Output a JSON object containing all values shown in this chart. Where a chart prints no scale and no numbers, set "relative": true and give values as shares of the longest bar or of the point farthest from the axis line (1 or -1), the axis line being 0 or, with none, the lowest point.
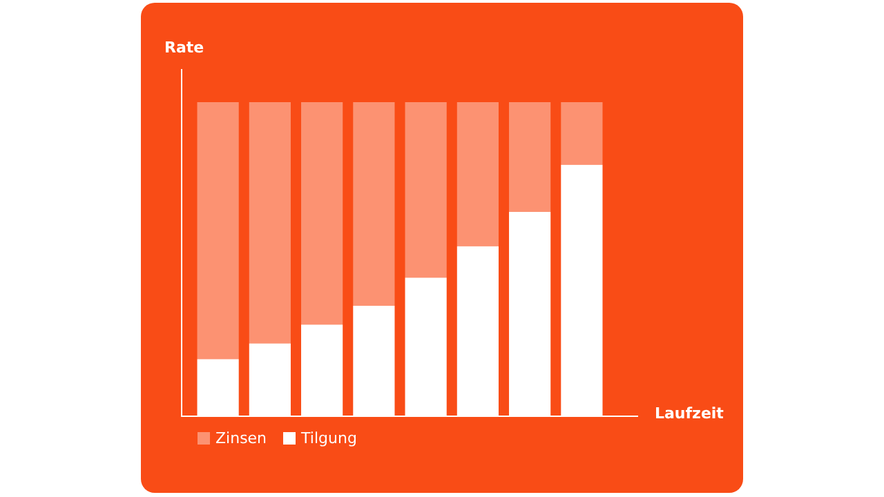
{
  "chart_data": {
    "type": "bar",
    "stacked": true,
    "relative": true,
    "xlabel": "Laufzeit",
    "ylabel": "Rate",
    "categories": [
      null,
      null,
      null,
      null,
      null,
      null,
      null,
      null
    ],
    "series": [
      {
        "name": "Tilgung",
        "color": "#ffffff",
        "values": [
          0.18,
          0.23,
          0.29,
          0.35,
          0.44,
          0.54,
          0.65,
          0.8
        ]
      },
      {
        "name": "Zinsen",
        "color": "#fc9272",
        "values": [
          0.82,
          0.77,
          0.71,
          0.65,
          0.56,
          0.46,
          0.35,
          0.2
        ]
      }
    ],
    "legend": "bottom left"
  }
}
